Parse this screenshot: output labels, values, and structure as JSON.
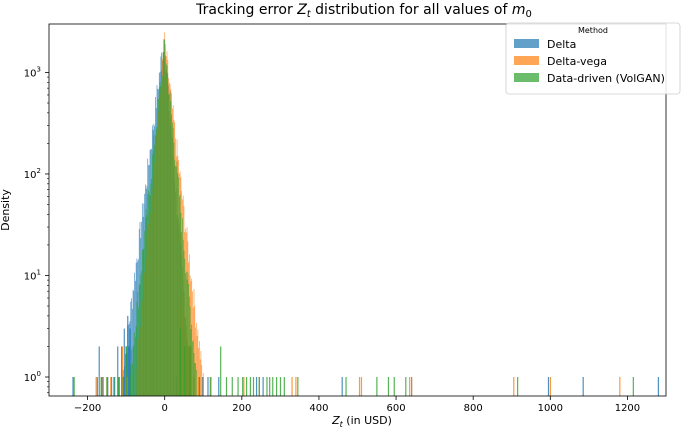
{
  "chart_data": {
    "type": "histogram",
    "title_parts": {
      "prefix": "Tracking error ",
      "var": "Z",
      "var_sub": "t",
      "middle": " distribution for all values of ",
      "var2": "m",
      "var2_sub": "0"
    },
    "xlabel_parts": {
      "var": "Z",
      "var_sub": "t",
      "suffix": " (in USD)"
    },
    "ylabel": "Density",
    "x_scale": "linear",
    "y_scale": "log",
    "xlim": [
      -300,
      1300
    ],
    "ylim": [
      0.65,
      3000
    ],
    "x_ticks": [
      -200,
      0,
      200,
      400,
      600,
      800,
      1000,
      1200
    ],
    "x_tick_labels": [
      "−200",
      "0",
      "200",
      "400",
      "600",
      "800",
      "1000",
      "1200"
    ],
    "y_ticks": [
      1,
      10,
      100,
      1000
    ],
    "y_tick_labels": [
      {
        "base": "10",
        "exp": "0"
      },
      {
        "base": "10",
        "exp": "1"
      },
      {
        "base": "10",
        "exp": "2"
      },
      {
        "base": "10",
        "exp": "3"
      }
    ],
    "grid": false,
    "legend": {
      "title": "Method",
      "placement": "top-right"
    },
    "series": [
      {
        "name": "Delta",
        "color": "#1f77b4",
        "peak": {
          "center": -2,
          "height": 2200,
          "scale_left": 14,
          "scale_right": 9
        },
        "sparse_values": [
          -238,
          -175,
          -170,
          -163,
          -160,
          -148,
          -138,
          -130,
          -122,
          -118,
          -112,
          -105,
          -100,
          -96,
          -93,
          -90,
          30,
          55,
          98,
          112,
          140,
          238,
          255,
          460,
          640,
          995,
          1085,
          1280
        ],
        "sparse_heights": [
          1,
          1,
          2,
          1,
          1,
          1,
          1,
          1,
          2,
          1,
          2,
          3,
          2,
          4,
          2,
          3,
          1,
          1,
          1,
          1,
          1,
          1,
          1,
          1,
          1,
          1,
          1,
          1
        ]
      },
      {
        "name": "Delta-vega",
        "color": "#ff7f0e",
        "peak": {
          "center": 0,
          "height": 2000,
          "scale_left": 10,
          "scale_right": 13
        },
        "sparse_values": [
          -178,
          -160,
          -150,
          -140,
          -110,
          -98,
          38,
          42,
          45,
          55,
          62,
          68,
          75,
          88,
          100,
          120,
          205,
          245,
          330,
          340,
          505,
          510,
          635,
          640,
          905,
          1000,
          1180
        ],
        "sparse_heights": [
          1,
          1,
          1,
          1,
          2,
          1,
          6,
          5,
          4,
          3,
          2,
          2,
          1,
          1,
          1,
          1,
          1,
          1,
          1,
          1,
          1,
          1,
          1,
          1,
          1,
          1,
          1
        ]
      },
      {
        "name": "Data-driven (VolGAN)",
        "color": "#2ca02c",
        "peak": {
          "center": 0,
          "height": 1950,
          "scale_left": 12,
          "scale_right": 11
        },
        "sparse_values": [
          -235,
          -165,
          -150,
          -132,
          -120,
          -108,
          -100,
          40,
          52,
          65,
          90,
          118,
          145,
          160,
          175,
          190,
          202,
          212,
          222,
          230,
          245,
          265,
          272,
          280,
          290,
          300,
          310,
          345,
          470,
          550,
          580,
          595,
          625,
          915,
          1215
        ],
        "sparse_heights": [
          1,
          1,
          1,
          1,
          1,
          1,
          2,
          3,
          2,
          2,
          1,
          1,
          2,
          1,
          1,
          1,
          1,
          1,
          1,
          1,
          1,
          1,
          1,
          1,
          1,
          1,
          1,
          1,
          1,
          1,
          1,
          1,
          1,
          1,
          1
        ]
      }
    ]
  }
}
